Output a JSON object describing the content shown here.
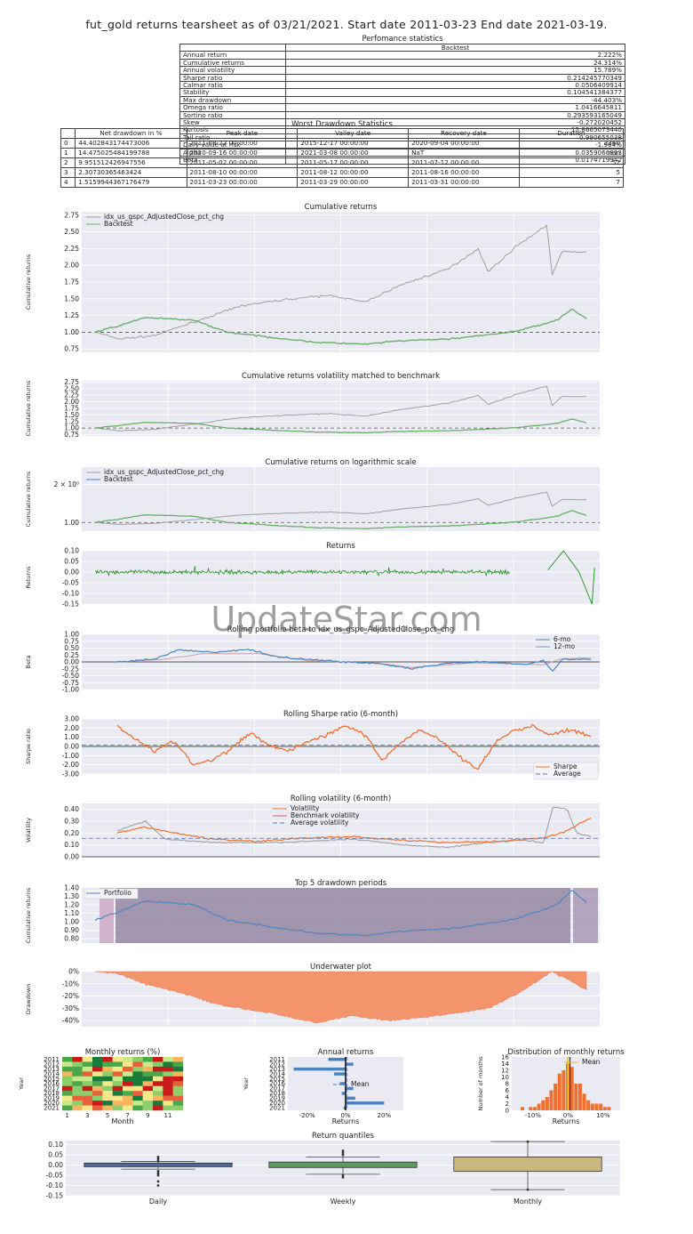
{
  "header": {
    "title": "fut_gold returns tearsheet as of 03/21/2021. Start date 2011-03-23 End date 2021-03-19."
  },
  "watermark": "UpdateStar.com",
  "perf": {
    "caption": "Perfomance statistics",
    "col": "Backtest",
    "rows": [
      [
        "Annual return",
        "2.222%"
      ],
      [
        "Cumulative returns",
        "24.314%"
      ],
      [
        "Annual volatility",
        "15.789%"
      ],
      [
        "Sharpe ratio",
        "0.214245770349"
      ],
      [
        "Calmar ratio",
        "0.0506409914"
      ],
      [
        "Stability",
        "0.104541384377"
      ],
      [
        "Max drawdown",
        "-44.403%"
      ],
      [
        "Omega ratio",
        "1.0416645811"
      ],
      [
        "Sortino ratio",
        "0.293593165049"
      ],
      [
        "Skew",
        "-0.272020452"
      ],
      [
        "Kurtosis",
        "15.8665073440"
      ],
      [
        "Tail ratio",
        "0.990655038"
      ],
      [
        "Daily value at risk",
        "-1.964%"
      ],
      [
        "Alpha",
        "0.0359066813"
      ],
      [
        "Beta",
        "0.0174719942"
      ]
    ]
  },
  "dd": {
    "caption": "Worst Drawdown Statistics",
    "headers": [
      "",
      "Net drawdown in %",
      "Peak date",
      "Valley date",
      "Recovery date",
      "Duration"
    ],
    "rows": [
      [
        "0",
        "44.402843174473006",
        "2011-08-22 00:00:00",
        "2015-12-17 00:00:00",
        "2020-09-04 00:00:00",
        "2360"
      ],
      [
        "1",
        "14.475025484199788",
        "2020-09-16 00:00:00",
        "2021-03-08 00:00:00",
        "NaT",
        "nan"
      ],
      [
        "2",
        "9.951512426947556",
        "2011-05-02 00:00:00",
        "2011-05-17 00:00:00",
        "2011-07-12 00:00:00",
        "52"
      ],
      [
        "3",
        "2.30730365463424",
        "2011-08-10 00:00:00",
        "2011-08-12 00:00:00",
        "2011-08-16 00:00:00",
        "5"
      ],
      [
        "4",
        "1.5159944367176479",
        "2011-03-23 00:00:00",
        "2011-03-29 00:00:00",
        "2011-03-31 00:00:00",
        "7"
      ]
    ]
  },
  "colors": {
    "bench": "#a0a0a0",
    "backtest": "#6ab06a",
    "blue": "#4a84c0",
    "green": "#1f8f1f",
    "orange": "#f07030",
    "drawdown": "#f4946c",
    "bg": "#eaeaf2"
  },
  "chart_data": [
    {
      "type": "line",
      "title": "Cumulative returns",
      "ylabel": "Cumulative returns",
      "ylim": [
        0.7,
        2.8
      ],
      "yticks": [
        0.75,
        1.0,
        1.25,
        1.5,
        1.75,
        2.0,
        2.25,
        2.5,
        2.75
      ],
      "legend": [
        "idx_us_gspc_AdjustedClose_pct_chg",
        "Backtest"
      ]
    },
    {
      "type": "line",
      "title": "Cumulative returns volatility matched to benchmark",
      "ylabel": "Cumulative returns",
      "ylim": [
        0.7,
        2.8
      ],
      "yticks": [
        0.75,
        1.0,
        1.25,
        1.5,
        1.75,
        2.0,
        2.25,
        2.5,
        2.75
      ]
    },
    {
      "type": "line",
      "title": "Cumulative returns on logarithmic scale",
      "ylabel": "Cumulative returns",
      "yticks": [
        "1.00",
        "2 × 10⁰"
      ],
      "legend": [
        "idx_us_gspc_AdjustedClose_pct_chg",
        "Backtest"
      ]
    },
    {
      "type": "line",
      "title": "Returns",
      "ylabel": "Returns",
      "ylim": [
        -0.15,
        0.1
      ],
      "yticks": [
        0.1,
        0.05,
        0.0,
        -0.05,
        -0.1,
        -0.15
      ]
    },
    {
      "type": "line",
      "title": "Rolling portfolio beta to idx_us_gspc_AdjustedClose_pct_chg",
      "ylabel": "Beta",
      "ylim": [
        -1,
        1
      ],
      "yticks": [
        1.0,
        0.75,
        0.5,
        0.25,
        0.0,
        -0.25,
        -0.5,
        -0.75,
        -1.0
      ],
      "legend": [
        "6-mo",
        "12-mo"
      ]
    },
    {
      "type": "line",
      "title": "Rolling Sharpe ratio (6-month)",
      "ylabel": "Sharpe ratio",
      "ylim": [
        -3,
        3
      ],
      "yticks": [
        3.0,
        2.0,
        1.0,
        0.0,
        -1.0,
        -2.0,
        -3.0
      ],
      "legend": [
        "Sharpe",
        "Average"
      ]
    },
    {
      "type": "line",
      "title": "Rolling volatility (6-month)",
      "ylabel": "Volatility",
      "ylim": [
        0,
        0.45
      ],
      "yticks": [
        0.4,
        0.3,
        0.2,
        0.1,
        0.0
      ],
      "legend": [
        "Volatility",
        "Benchmark volatility",
        "Average volatility"
      ]
    },
    {
      "type": "line",
      "title": "Top 5 drawdown periods",
      "ylabel": "Cumulative returns",
      "ylim": [
        0.75,
        1.4
      ],
      "yticks": [
        1.4,
        1.3,
        1.2,
        1.1,
        1.0,
        0.9,
        0.8
      ],
      "legend": [
        "Portfolio"
      ]
    },
    {
      "type": "area",
      "title": "Underwater plot",
      "ylabel": "Drawdown",
      "ylim": [
        -45,
        0
      ],
      "yticks": [
        "0%",
        "-10%",
        "-20%",
        "-30%",
        "-40%"
      ]
    },
    {
      "type": "heatmap",
      "title": "Monthly returns (%)",
      "xlabel": "Month",
      "ylabel": "Year",
      "years": [
        "2011",
        "2012",
        "2013",
        "2014",
        "2015",
        "2016",
        "2017",
        "2018",
        "2019",
        "2020",
        "2021"
      ],
      "months": [
        "1",
        "3",
        "5",
        "7",
        "9",
        "11"
      ]
    },
    {
      "type": "bar",
      "title": "Annual returns",
      "xlabel": "Returns",
      "ylabel": "Year",
      "years": [
        "2011",
        "2012",
        "2013",
        "2014",
        "2015",
        "2016",
        "2017",
        "2018",
        "2019",
        "2020",
        "2021"
      ],
      "values": [
        -9,
        4,
        -27,
        -6,
        0,
        -3,
        4,
        -2,
        5,
        20,
        -1
      ],
      "xticks": [
        "-20%",
        "0%",
        "20%"
      ],
      "legend": [
        "Mean"
      ]
    },
    {
      "type": "bar",
      "title": "Distribution of monthly returns",
      "xlabel": "Returns",
      "ylabel": "Number of months",
      "xticks": [
        "-10%",
        "0%",
        "10%"
      ],
      "yticks": [
        0,
        2,
        4,
        6,
        8,
        10,
        12,
        14,
        16
      ],
      "values": [
        1,
        0,
        1,
        1,
        2,
        3,
        4,
        6,
        8,
        11,
        12,
        14,
        13,
        8,
        8,
        5,
        3,
        2,
        2,
        2,
        1,
        1
      ],
      "legend": [
        "Mean"
      ]
    },
    {
      "type": "box",
      "title": "Return quantiles",
      "categories": [
        "Daily",
        "Weekly",
        "Monthly"
      ],
      "ylim": [
        -0.15,
        0.12
      ],
      "yticks": [
        0.1,
        0.05,
        0.0,
        -0.05,
        -0.1,
        -0.15
      ]
    }
  ]
}
